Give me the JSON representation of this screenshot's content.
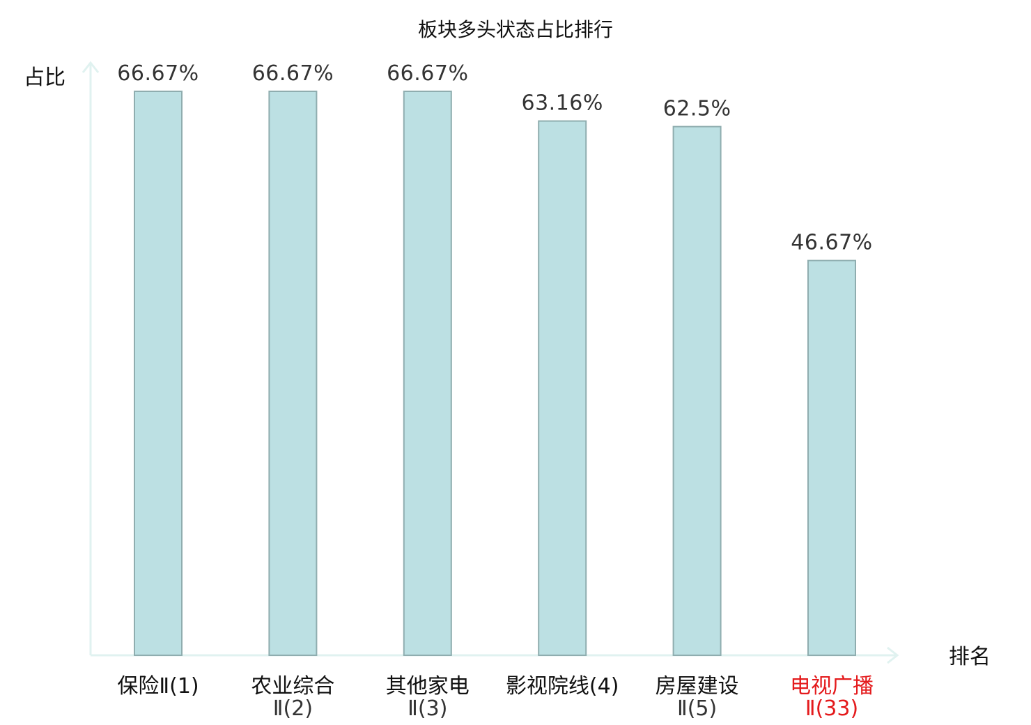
{
  "chart_data": {
    "type": "bar",
    "title": "板块多头状态占比排行",
    "ylabel": "占比",
    "xlabel": "排名",
    "ylim": [
      0,
      70
    ],
    "grid": false,
    "categories": [
      {
        "name": "保险Ⅱ(1)",
        "lines": [
          "保险Ⅱ(1)"
        ],
        "highlight": false
      },
      {
        "name": "农业综合Ⅱ(2)",
        "lines": [
          "农业综合",
          "Ⅱ(2)"
        ],
        "highlight": false
      },
      {
        "name": "其他家电Ⅱ(3)",
        "lines": [
          "其他家电",
          "Ⅱ(3)"
        ],
        "highlight": false
      },
      {
        "name": "影视院线(4)",
        "lines": [
          "影视院线(4)"
        ],
        "highlight": false
      },
      {
        "name": "房屋建设Ⅱ(5)",
        "lines": [
          "房屋建设",
          "Ⅱ(5)"
        ],
        "highlight": false
      },
      {
        "name": "电视广播Ⅱ(33)",
        "lines": [
          "电视广播",
          "Ⅱ(33)"
        ],
        "highlight": true
      }
    ],
    "values": [
      66.67,
      66.67,
      66.67,
      63.16,
      62.5,
      46.67
    ],
    "value_labels": [
      "66.67%",
      "66.67%",
      "66.67%",
      "63.16%",
      "62.5%",
      "46.67%"
    ],
    "colors": {
      "bar_fill": "#bce0e3",
      "bar_stroke": "#8fadaf",
      "axis": "#e0f2f0",
      "highlight_text": "#e41a1c"
    }
  }
}
